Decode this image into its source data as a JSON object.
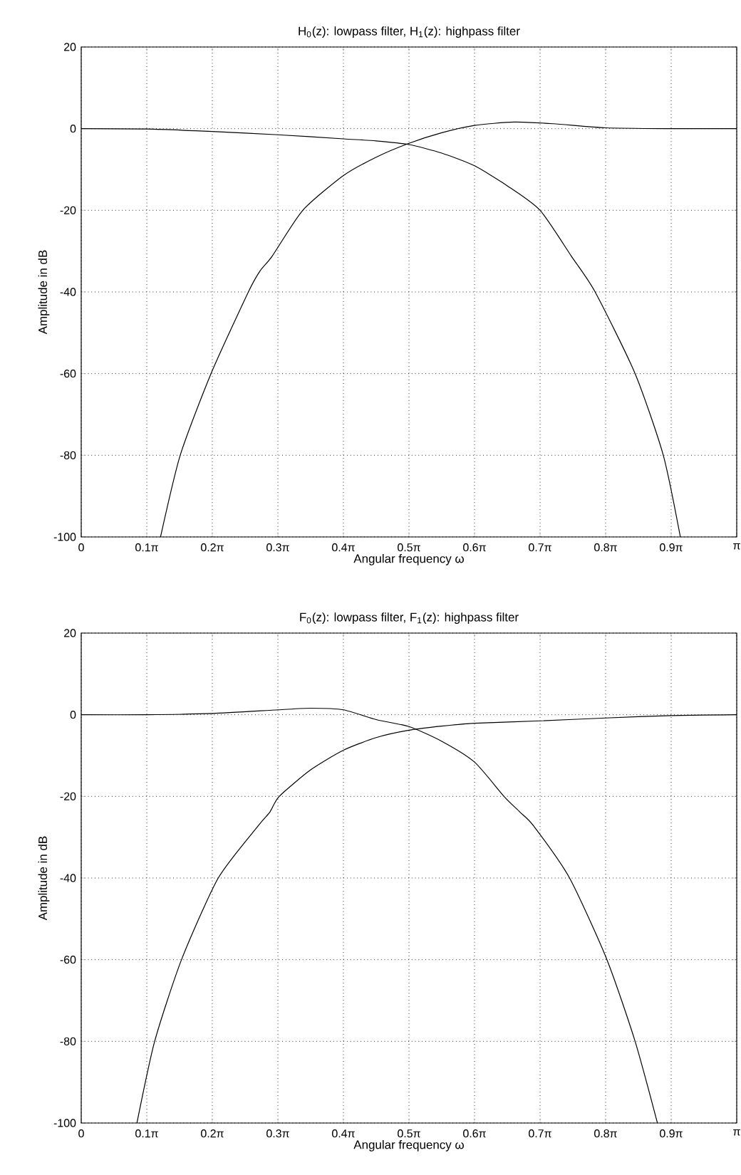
{
  "chart_data": [
    {
      "type": "line",
      "title": "H$_{0}$(z): lowpass filter, H$_{1}$(z): highpass filter",
      "xlabel": "Angular frequency ω",
      "ylabel": "Amplitude in dB",
      "xlim": [
        0,
        3.1416
      ],
      "ylim": [
        -100,
        20
      ],
      "xticks": [
        0,
        {
          "value": 0.3142,
          "label": "0.1π"
        },
        {
          "value": 0.6283,
          "label": "0.2π"
        },
        {
          "value": 0.9425,
          "label": "0.3π"
        },
        {
          "value": 1.2566,
          "label": "0.4π"
        },
        {
          "value": 1.5708,
          "label": "0.5π"
        },
        {
          "value": 1.885,
          "label": "0.6π"
        },
        {
          "value": 2.1991,
          "label": "0.7π"
        },
        {
          "value": 2.5133,
          "label": "0.8π"
        },
        {
          "value": 2.8274,
          "label": "0.9π"
        },
        {
          "value": 3.1416,
          "label": "π"
        }
      ],
      "yticks": [
        -100,
        -80,
        -60,
        -40,
        -20,
        0,
        20
      ],
      "grid": true,
      "series": [
        {
          "color": "#000000",
          "x": [
            0,
            0.3142,
            0.6283,
            0.9425,
            1.2566,
            1.4137,
            1.5708,
            1.7279,
            1.885,
            2.042,
            2.1991,
            2.3499,
            2.463,
            2.6546,
            2.7897,
            2.8714
          ],
          "values": [
            0,
            -0.1,
            -0.7,
            -1.5,
            -2.5,
            -3,
            -3.9,
            -6,
            -9.1,
            -14,
            -20,
            -31.3,
            -40,
            -60,
            -80,
            -100
          ]
        },
        {
          "color": "#000000",
          "x": [
            0.3801,
            0.4744,
            0.622,
            0.8011,
            0.8577,
            0.9142,
            1.0619,
            1.2566,
            1.4137,
            1.5708,
            1.7279,
            1.885,
            2.0735,
            2.2619,
            2.5133,
            2.8274,
            3.1416
          ],
          "values": [
            -100,
            -80,
            -60,
            -40,
            -34.8,
            -31.3,
            -20,
            -11.5,
            -7,
            -3.6,
            -1,
            0.8,
            1.6,
            1.2,
            0.2,
            0,
            0
          ]
        }
      ]
    },
    {
      "type": "line",
      "title": "F$_{0}$(z): lowpass filter, F$_{1}$(z): highpass filter",
      "xlabel": "Angular frequency ω",
      "ylabel": "Amplitude in dB",
      "xlim": [
        0,
        3.1416
      ],
      "ylim": [
        -100,
        20
      ],
      "xticks": [
        0,
        {
          "value": 0.3142,
          "label": "0.1π"
        },
        {
          "value": 0.6283,
          "label": "0.2π"
        },
        {
          "value": 0.9425,
          "label": "0.3π"
        },
        {
          "value": 1.2566,
          "label": "0.4π"
        },
        {
          "value": 1.5708,
          "label": "0.5π"
        },
        {
          "value": 1.885,
          "label": "0.6π"
        },
        {
          "value": 2.1991,
          "label": "0.7π"
        },
        {
          "value": 2.5133,
          "label": "0.8π"
        },
        {
          "value": 2.8274,
          "label": "0.9π"
        },
        {
          "value": 3.1416,
          "label": "π"
        }
      ],
      "yticks": [
        -100,
        -80,
        -60,
        -40,
        -20,
        0,
        20
      ],
      "grid": true,
      "series": [
        {
          "color": "#000000",
          "x": [
            0,
            0.3142,
            0.6283,
            0.9425,
            1.0996,
            1.2566,
            1.4137,
            1.5708,
            1.7279,
            1.885,
            2.0263,
            2.1017,
            2.1677,
            2.3405,
            2.5196,
            2.6546,
            2.7615
          ],
          "values": [
            0,
            0,
            0.3,
            1.2,
            1.6,
            1.2,
            -1.2,
            -2.9,
            -6.5,
            -11.6,
            -20,
            -23.8,
            -27.2,
            -40,
            -60,
            -80,
            -100
          ]
        },
        {
          "color": "#000000",
          "x": [
            0.267,
            0.3519,
            0.4807,
            0.6566,
            0.8482,
            0.9048,
            0.9488,
            1.0996,
            1.2566,
            1.4137,
            1.5708,
            1.7279,
            1.885,
            2.1991,
            2.5133,
            2.8274,
            3.1416
          ],
          "values": [
            -100,
            -80,
            -60,
            -40,
            -27.2,
            -23.8,
            -20,
            -13.5,
            -8.7,
            -5.6,
            -3.8,
            -2.8,
            -2.1,
            -1.5,
            -0.8,
            -0.2,
            0
          ]
        }
      ]
    }
  ]
}
